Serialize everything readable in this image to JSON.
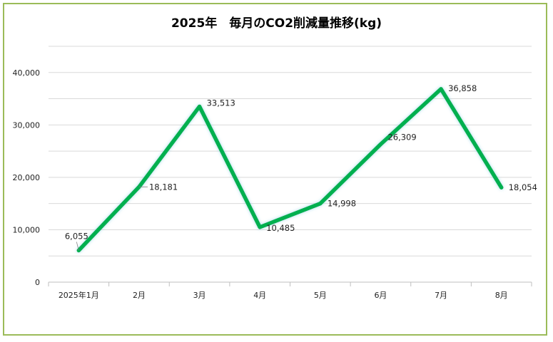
{
  "chart_data": {
    "type": "line",
    "title": "2025年　毎月のCO2削減量推移(kg)",
    "xlabel": "",
    "ylabel": "",
    "categories": [
      "2025年1月",
      "2月",
      "3月",
      "4月",
      "5月",
      "6月",
      "7月",
      "8月"
    ],
    "series": [
      {
        "values": [
          6055,
          18181,
          33513,
          10485,
          14998,
          26309,
          36858,
          18054
        ]
      }
    ],
    "data_labels": [
      "6,055",
      "18,181",
      "33,513",
      "10,485",
      "14,998",
      "26,309",
      "36,858",
      "18,054"
    ],
    "ylim": [
      0,
      45000
    ],
    "yticks": [
      0,
      10000,
      20000,
      30000,
      40000
    ],
    "ytick_labels": [
      "0",
      "10,000",
      "20,000",
      "30,000",
      "40,000"
    ],
    "grid": true,
    "legend": "none",
    "colors": {
      "line": "#00b050",
      "frame": "#9bbb59",
      "grid": "#d9d9d9"
    }
  }
}
